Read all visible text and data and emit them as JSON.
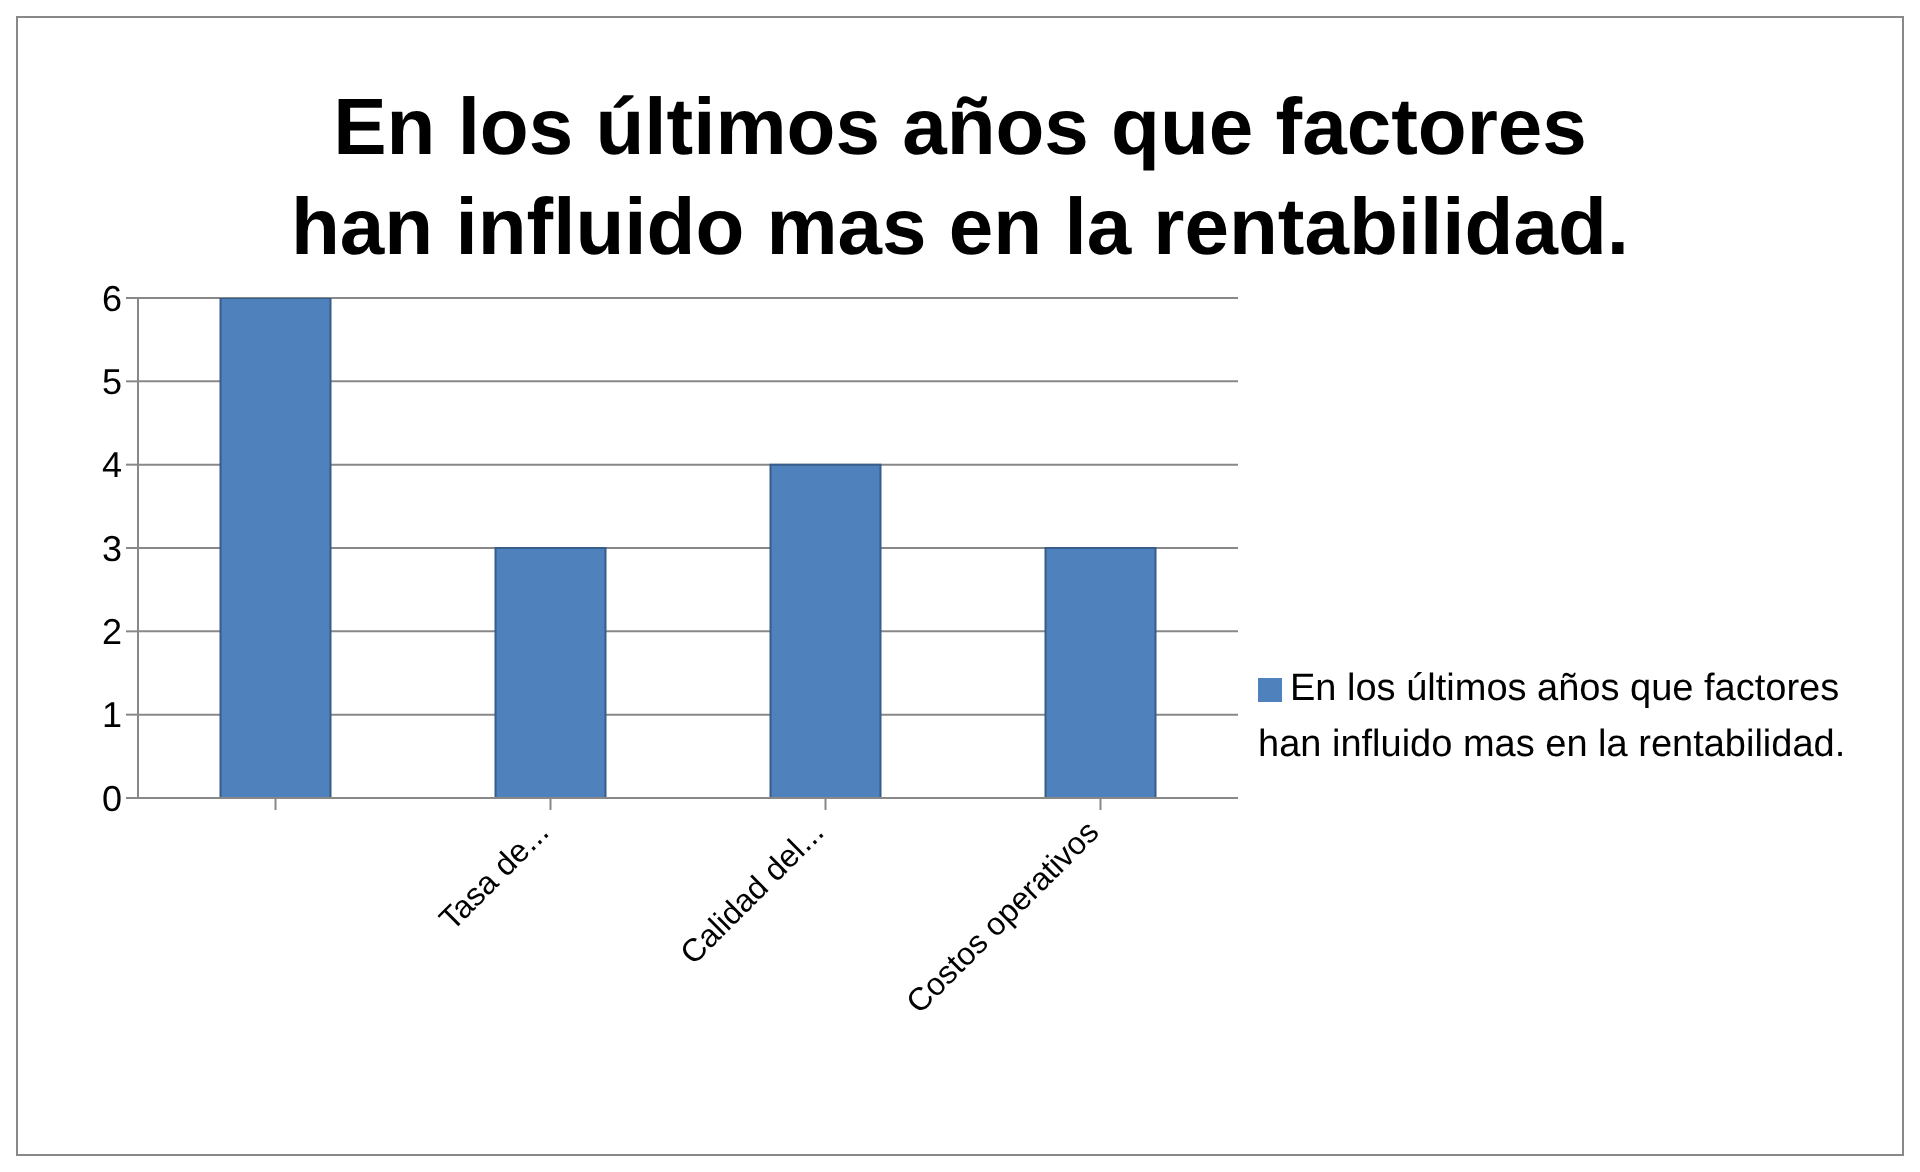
{
  "chart_data": {
    "type": "bar",
    "title": "En los últimos años que factores han influido mas en la rentabilidad.",
    "categories": [
      null,
      "Tasa de...",
      "Calidad del...",
      "Costos operativos"
    ],
    "series": [
      {
        "name": "En los últimos años que factores han influido mas en la rentabilidad.",
        "color": "#4f81bd",
        "values": [
          6,
          3,
          4,
          3
        ]
      }
    ],
    "ylim": [
      0,
      6
    ],
    "yticks": [
      0,
      1,
      2,
      3,
      4,
      5,
      6
    ],
    "grid": "y",
    "legend": "right"
  }
}
